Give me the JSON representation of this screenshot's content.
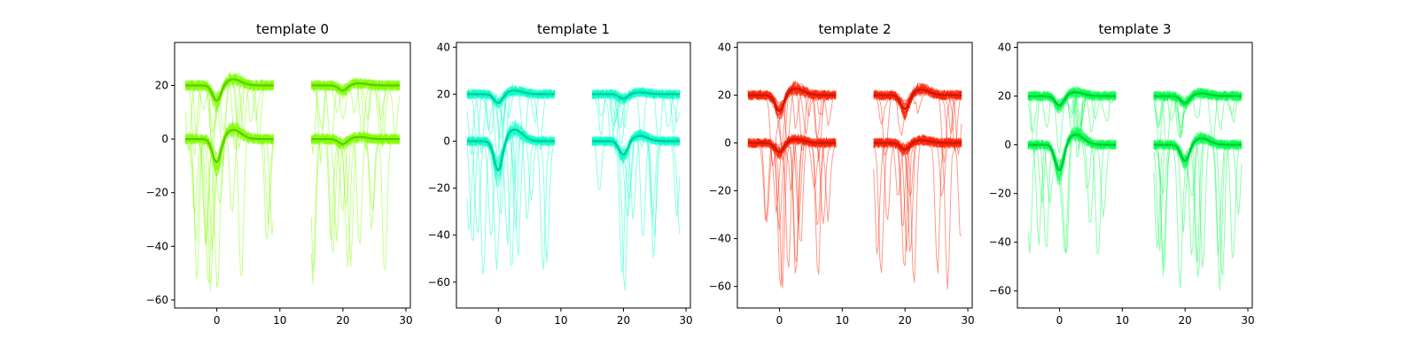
{
  "chart_data": [
    {
      "type": "line",
      "title": "template 0",
      "color": "#7fff00",
      "xlim": [
        -6.7,
        30.7
      ],
      "ylim": [
        -63,
        36
      ],
      "xticks": [
        0,
        10,
        20,
        30
      ],
      "yticks": [
        -60,
        -40,
        -20,
        0,
        20
      ],
      "channels": [
        {
          "offset": 20,
          "segments": [
            {
              "x_start": -5,
              "x_end": 9,
              "trough_x": 0,
              "trough_depth": 6
            },
            {
              "x_start": 15,
              "x_end": 29,
              "trough_x": 20,
              "trough_depth": 2
            }
          ],
          "noise": 2,
          "spike_floor": -8
        },
        {
          "offset": 0,
          "segments": [
            {
              "x_start": -5,
              "x_end": 9,
              "trough_x": 0,
              "trough_depth": 9
            },
            {
              "x_start": 15,
              "x_end": 29,
              "trough_x": 20,
              "trough_depth": 2
            }
          ],
          "noise": 2,
          "spike_floor": -58
        }
      ]
    },
    {
      "type": "line",
      "title": "template 1",
      "color": "#00ffc8",
      "xlim": [
        -6.7,
        30.7
      ],
      "ylim": [
        -71,
        42
      ],
      "xticks": [
        0,
        10,
        20,
        30
      ],
      "yticks": [
        -60,
        -40,
        -20,
        0,
        20,
        40
      ],
      "channels": [
        {
          "offset": 20,
          "segments": [
            {
              "x_start": -5,
              "x_end": 9,
              "trough_x": 0,
              "trough_depth": 4
            },
            {
              "x_start": 15,
              "x_end": 29,
              "trough_x": 20,
              "trough_depth": 2
            }
          ],
          "noise": 2,
          "spike_floor": -8
        },
        {
          "offset": 0,
          "segments": [
            {
              "x_start": -5,
              "x_end": 9,
              "trough_x": 0,
              "trough_depth": 13
            },
            {
              "x_start": 15,
              "x_end": 29,
              "trough_x": 20,
              "trough_depth": 6
            }
          ],
          "noise": 2,
          "spike_floor": -64
        }
      ]
    },
    {
      "type": "line",
      "title": "template 2",
      "color": "#ff2000",
      "xlim": [
        -6.7,
        30.7
      ],
      "ylim": [
        -69,
        42
      ],
      "xticks": [
        0,
        10,
        20,
        30
      ],
      "yticks": [
        -60,
        -40,
        -20,
        0,
        20,
        40
      ],
      "channels": [
        {
          "offset": 20,
          "segments": [
            {
              "x_start": -5,
              "x_end": 9,
              "trough_x": 0,
              "trough_depth": 7
            },
            {
              "x_start": 15,
              "x_end": 29,
              "trough_x": 20,
              "trough_depth": 6
            }
          ],
          "noise": 2,
          "spike_floor": -8
        },
        {
          "offset": 0,
          "segments": [
            {
              "x_start": -5,
              "x_end": 9,
              "trough_x": 0,
              "trough_depth": 4
            },
            {
              "x_start": 15,
              "x_end": 29,
              "trough_x": 20,
              "trough_depth": 3
            }
          ],
          "noise": 2,
          "spike_floor": -63
        }
      ]
    },
    {
      "type": "line",
      "title": "template 3",
      "color": "#00ff4a",
      "xlim": [
        -6.7,
        30.7
      ],
      "ylim": [
        -67,
        42
      ],
      "xticks": [
        0,
        10,
        20,
        30
      ],
      "yticks": [
        -60,
        -40,
        -20,
        0,
        20,
        40
      ],
      "channels": [
        {
          "offset": 20,
          "segments": [
            {
              "x_start": -5,
              "x_end": 9,
              "trough_x": 0,
              "trough_depth": 4
            },
            {
              "x_start": 15,
              "x_end": 29,
              "trough_x": 20,
              "trough_depth": 3
            }
          ],
          "noise": 2,
          "spike_floor": -8
        },
        {
          "offset": 0,
          "segments": [
            {
              "x_start": -5,
              "x_end": 9,
              "trough_x": 0,
              "trough_depth": 11
            },
            {
              "x_start": 15,
              "x_end": 29,
              "trough_x": 20,
              "trough_depth": 7
            }
          ],
          "noise": 2,
          "spike_floor": -60
        }
      ]
    }
  ]
}
